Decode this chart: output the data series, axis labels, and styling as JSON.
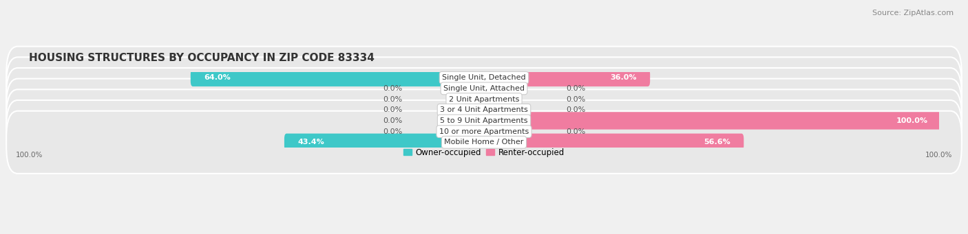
{
  "title": "HOUSING STRUCTURES BY OCCUPANCY IN ZIP CODE 83334",
  "source": "Source: ZipAtlas.com",
  "categories": [
    "Single Unit, Detached",
    "Single Unit, Attached",
    "2 Unit Apartments",
    "3 or 4 Unit Apartments",
    "5 to 9 Unit Apartments",
    "10 or more Apartments",
    "Mobile Home / Other"
  ],
  "owner_pct": [
    64.0,
    0.0,
    0.0,
    0.0,
    0.0,
    0.0,
    43.4
  ],
  "renter_pct": [
    36.0,
    0.0,
    0.0,
    0.0,
    100.0,
    0.0,
    56.6
  ],
  "owner_color": "#3ec8c8",
  "renter_color": "#f07ca0",
  "row_bg_color": "#e8e8e8",
  "row_separator_color": "#ffffff",
  "title_fontsize": 11,
  "source_fontsize": 8,
  "label_fontsize": 8,
  "category_fontsize": 8,
  "legend_fontsize": 8.5,
  "axis_label_fontsize": 7.5,
  "bar_height": 0.62,
  "max_val": 100.0,
  "figbg": "#f0f0f0"
}
